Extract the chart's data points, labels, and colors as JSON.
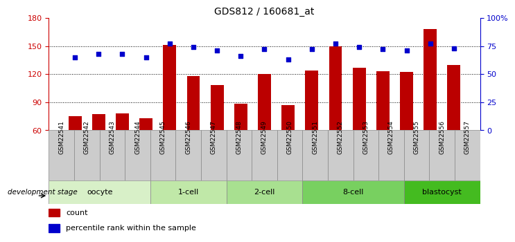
{
  "title": "GDS812 / 160681_at",
  "samples": [
    "GSM22541",
    "GSM22542",
    "GSM22543",
    "GSM22544",
    "GSM22545",
    "GSM22546",
    "GSM22547",
    "GSM22548",
    "GSM22549",
    "GSM22550",
    "GSM22551",
    "GSM22552",
    "GSM22553",
    "GSM22554",
    "GSM22555",
    "GSM22556",
    "GSM22557"
  ],
  "count_values": [
    75,
    77,
    78,
    73,
    151,
    118,
    108,
    88,
    120,
    87,
    124,
    150,
    127,
    123,
    122,
    168,
    130
  ],
  "percentile_values": [
    65,
    68,
    68,
    65,
    77,
    74,
    71,
    66,
    72,
    63,
    72,
    77,
    74,
    72,
    71,
    77,
    73
  ],
  "groups": [
    {
      "label": "oocyte",
      "start": 0,
      "end": 3,
      "color": "#d8f0c8"
    },
    {
      "label": "1-cell",
      "start": 4,
      "end": 6,
      "color": "#c0e8a8"
    },
    {
      "label": "2-cell",
      "start": 7,
      "end": 9,
      "color": "#a8e090"
    },
    {
      "label": "8-cell",
      "start": 10,
      "end": 13,
      "color": "#78d060"
    },
    {
      "label": "blastocyst",
      "start": 14,
      "end": 16,
      "color": "#44bb20"
    }
  ],
  "ylim_left": [
    60,
    180
  ],
  "ylim_right": [
    0,
    100
  ],
  "yticks_left": [
    60,
    90,
    120,
    150,
    180
  ],
  "yticks_right": [
    0,
    25,
    50,
    75,
    100
  ],
  "ytick_labels_right": [
    "0",
    "25",
    "50",
    "75",
    "100%"
  ],
  "bar_color": "#bb0000",
  "dot_color": "#0000cc",
  "bar_width": 0.55,
  "bar_bottom": 60,
  "legend_count_label": "count",
  "legend_pct_label": "percentile rank within the sample",
  "dev_stage_label": "development stage",
  "tick_color_left": "#cc0000",
  "tick_color_right": "#0000cc",
  "grid_lines_at": [
    90,
    120,
    150
  ],
  "xtick_bg_color": "#cccccc",
  "plot_bg_color": "#ffffff"
}
